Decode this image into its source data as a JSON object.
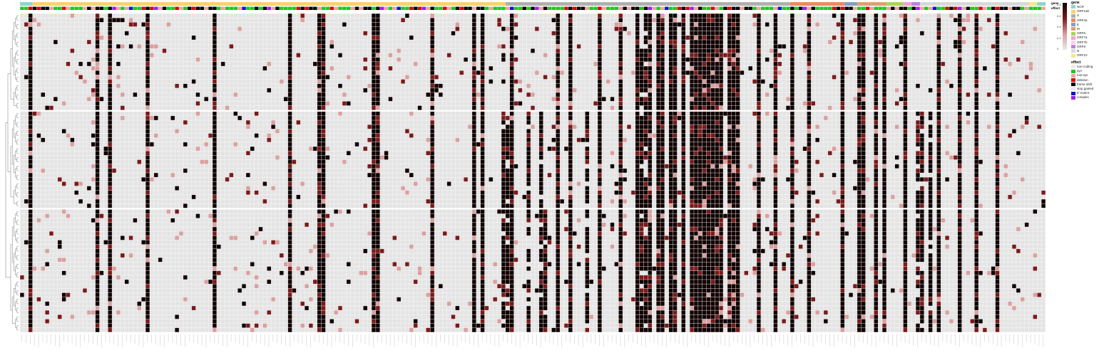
{
  "chart_data": {
    "type": "heatmap",
    "title": "",
    "xlabel": "",
    "ylabel": "",
    "n_cols": 245,
    "n_rows": 72,
    "row_gap_after": [
      21,
      43
    ],
    "value_range": [
      0,
      1
    ],
    "colorbar_ticks": [
      "0.8",
      "0.6",
      "0.4",
      "0.2",
      "0"
    ],
    "annotation_tracks": [
      "gene",
      "effect"
    ],
    "gene_legend": {
      "title": "gene",
      "items": [
        {
          "label": "NCR",
          "color": "#8fd6c8"
        },
        {
          "label": "ORF1ab",
          "color": "#fbd36a"
        },
        {
          "label": "S",
          "color": "#b0b0b0"
        },
        {
          "label": "ORF3a",
          "color": "#f08a5d"
        },
        {
          "label": "E",
          "color": "#80a0c8"
        },
        {
          "label": "M",
          "color": "#e0a070"
        },
        {
          "label": "ORF6",
          "color": "#a6d854"
        },
        {
          "label": "ORF7a",
          "color": "#f2a2d2"
        },
        {
          "label": "ORF7b",
          "color": "#fcd0e0"
        },
        {
          "label": "ORF8",
          "color": "#c080e0"
        },
        {
          "label": "N",
          "color": "#d9d9d9"
        },
        {
          "label": "ORF10",
          "color": "#f5e68c"
        }
      ]
    },
    "effect_legend": {
      "title": "effect",
      "items": [
        {
          "label": "non-coding",
          "color": "#ececec"
        },
        {
          "label": "syn",
          "color": "#1ec81e"
        },
        {
          "label": "mis-sys",
          "color": "#f4a0a0"
        },
        {
          "label": "deletion",
          "color": "#e00000"
        },
        {
          "label": "frame shift",
          "color": "#000000"
        },
        {
          "label": "stop gained",
          "color": "#e8e8e8"
        },
        {
          "label": "5'-extent",
          "color": "#1010e0"
        },
        {
          "label": "complex",
          "color": "#a020f0"
        }
      ]
    },
    "gene_segments": [
      {
        "gene": "NCR",
        "from": 0,
        "to": 2
      },
      {
        "gene": "ORF1ab",
        "from": 3,
        "to": 115
      },
      {
        "gene": "S",
        "from": 116,
        "to": 183
      },
      {
        "gene": "ORF3a",
        "from": 184,
        "to": 196
      },
      {
        "gene": "E",
        "from": 197,
        "to": 199
      },
      {
        "gene": "M",
        "from": 200,
        "to": 206
      },
      {
        "gene": "ORF6",
        "from": 207,
        "to": 210
      },
      {
        "gene": "ORF7a",
        "from": 211,
        "to": 212
      },
      {
        "gene": "ORF8",
        "from": 213,
        "to": 214
      },
      {
        "gene": "N",
        "from": 215,
        "to": 240
      },
      {
        "gene": "ORF10",
        "from": 241,
        "to": 242
      },
      {
        "gene": "NCR",
        "from": 243,
        "to": 244
      }
    ],
    "effect_pattern": [
      "syn",
      "mis-sys",
      "frame shift",
      "syn",
      "deletion",
      "frame shift",
      "mis-sys",
      "syn",
      "frame shift",
      "syn",
      "mis-sys",
      "frame shift",
      "complex",
      "syn",
      "deletion",
      "frame shift",
      "syn",
      "5'-extent",
      "frame shift",
      "mis-sys",
      "syn",
      "frame shift",
      "syn",
      "deletion"
    ],
    "colors": {
      "empty": "#e4e4e4",
      "grid": "#ffffff",
      "full": "#100000",
      "mid": "#7a1a1a",
      "low": "#d9a0a0",
      "border": "#bfbfbf"
    },
    "full_columns": [
      2,
      18,
      21,
      30,
      46,
      64,
      71,
      72,
      84,
      85,
      98,
      108,
      110,
      117,
      128,
      131,
      138,
      143,
      147,
      150,
      152,
      153,
      155,
      156,
      158,
      160,
      161,
      162,
      163,
      164,
      165,
      166,
      167,
      169,
      170,
      171,
      176,
      180,
      184,
      188,
      196,
      200,
      201,
      204,
      206,
      211,
      219,
      224,
      228,
      233
    ],
    "partial_columns": [
      {
        "col": 108,
        "from_row": 0,
        "to_row": 71
      },
      {
        "col": 115,
        "from_row": 22,
        "to_row": 71
      },
      {
        "col": 116,
        "from_row": 22,
        "to_row": 71
      },
      {
        "col": 121,
        "from_row": 22,
        "to_row": 71
      },
      {
        "col": 124,
        "from_row": 22,
        "to_row": 71
      },
      {
        "col": 125,
        "from_row": 44,
        "to_row": 71
      },
      {
        "col": 135,
        "from_row": 22,
        "to_row": 71
      },
      {
        "col": 148,
        "from_row": 8,
        "to_row": 71
      },
      {
        "col": 149,
        "from_row": 0,
        "to_row": 71
      },
      {
        "col": 214,
        "from_row": 22,
        "to_row": 71
      },
      {
        "col": 215,
        "from_row": 22,
        "to_row": 71
      },
      {
        "col": 217,
        "from_row": 22,
        "to_row": 71
      }
    ]
  }
}
